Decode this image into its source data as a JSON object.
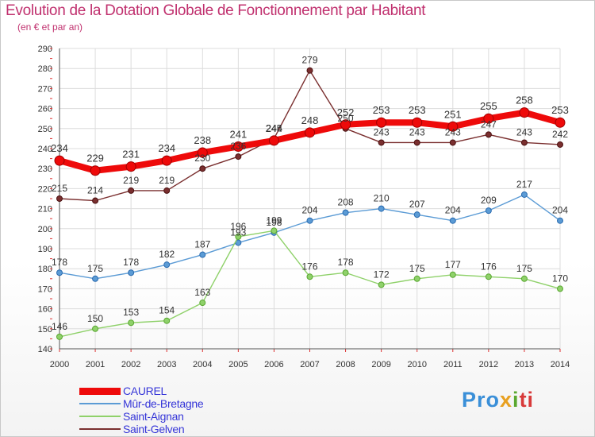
{
  "header": {
    "title": "Evolution de la Dotation Globale de Fonctionnement par Habitant",
    "subtitle": "(en € et par an)"
  },
  "logo": {
    "part1": "Pro",
    "part2": "x",
    "part3": "i",
    "part4": "ti"
  },
  "chart_data": {
    "type": "line",
    "title": "Evolution de la Dotation Globale de Fonctionnement par Habitant",
    "subtitle": "(en € et par an)",
    "xlabel": "",
    "ylabel": "",
    "x": [
      "2000",
      "2001",
      "2002",
      "2003",
      "2004",
      "2005",
      "2006",
      "2007",
      "2008",
      "2009",
      "2010",
      "2011",
      "2012",
      "2013",
      "2014"
    ],
    "ylim": [
      140,
      290
    ],
    "yticks": [
      "140",
      "150",
      "160",
      "170",
      "180",
      "190",
      "200",
      "210",
      "220",
      "230",
      "240",
      "250",
      "260",
      "270",
      "280",
      "290"
    ],
    "grid": true,
    "legend_position": "bottom-left",
    "series": [
      {
        "name": "CAUREL",
        "color": "#ee0a0a",
        "values": [
          234,
          229,
          231,
          234,
          238,
          241,
          244,
          248,
          252,
          253,
          253,
          251,
          255,
          258,
          253
        ],
        "labels": [
          "234",
          "229",
          "231",
          "234",
          "238",
          "241",
          "244",
          "248",
          "252",
          "253",
          "253",
          "251",
          "255",
          "258",
          "253"
        ]
      },
      {
        "name": "Mûr-de-Bretagne",
        "color": "#5b9bd5",
        "values": [
          178,
          175,
          178,
          182,
          187,
          193,
          198,
          204,
          208,
          210,
          207,
          204,
          209,
          217,
          204
        ],
        "labels": [
          "178",
          "175",
          "178",
          "182",
          "187",
          "193",
          "198",
          "204",
          "208",
          "210",
          "207",
          "204",
          "209",
          "217",
          "204"
        ]
      },
      {
        "name": "Saint-Aignan",
        "color": "#8fd16a",
        "values": [
          146,
          150,
          153,
          154,
          163,
          196,
          199,
          176,
          178,
          172,
          175,
          177,
          176,
          175,
          170
        ],
        "labels": [
          "146",
          "150",
          "153",
          "154",
          "163",
          "196",
          "199",
          "176",
          "178",
          "172",
          "175",
          "177",
          "176",
          "175",
          "170"
        ]
      },
      {
        "name": "Saint-Gelven",
        "color": "#7a2f2f",
        "values": [
          215,
          214,
          219,
          219,
          230,
          236,
          245,
          279,
          250,
          243,
          243,
          243,
          247,
          243,
          242
        ],
        "labels": [
          "215",
          "214",
          "219",
          "219",
          "230",
          "236",
          "245",
          "279",
          "250",
          "243",
          "243",
          "243",
          "247",
          "243",
          "242"
        ]
      }
    ]
  }
}
